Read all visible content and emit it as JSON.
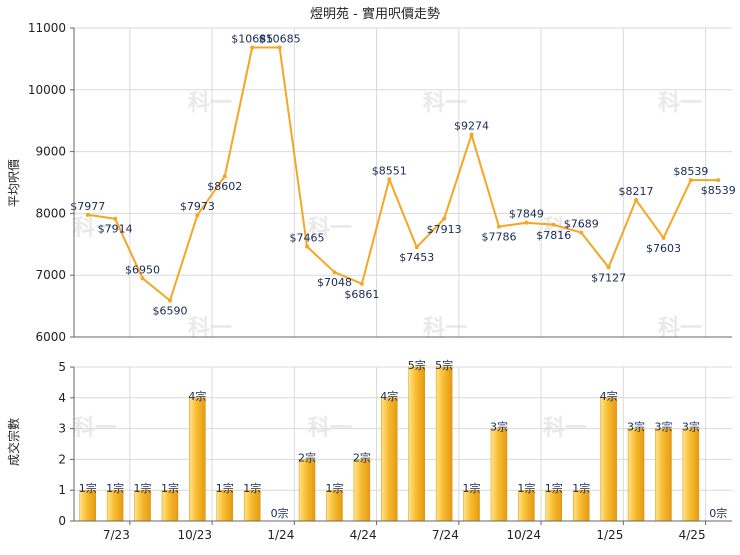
{
  "title": "煜明苑 - 實用呎價走勢",
  "watermark": "科一",
  "colors": {
    "line": "#f5a623",
    "bar_light": "#ffe48a",
    "bar_mid": "#f7bc31",
    "bar_dark": "#e59a12",
    "grid": "#d9d9d9",
    "axis": "#666666",
    "text": "#222222",
    "label": "#1a2a55",
    "watermark": "#e9e9e9"
  },
  "chart_data": [
    {
      "type": "line",
      "ylabel": "平均呎價",
      "ylim": [
        6000,
        11000
      ],
      "yticks": [
        "6000",
        "7000",
        "8000",
        "9000",
        "10000",
        "11000"
      ],
      "grid": true,
      "values": [
        7977,
        7914,
        6950,
        6590,
        7973,
        8602,
        10685,
        10685,
        7465,
        7048,
        6861,
        8551,
        7453,
        7913,
        9274,
        7786,
        7849,
        7816,
        7689,
        7127,
        8217,
        7603,
        8539,
        8539
      ],
      "labels": [
        "$7977",
        "$7914",
        "$6950",
        "$6590",
        "$7973",
        "$8602",
        "$10685",
        "$10685",
        "$7465",
        "$7048",
        "$6861",
        "$8551",
        "$7453",
        "$7913",
        "$9274",
        "$7786",
        "$7849",
        "$7816",
        "$7689",
        "$7127",
        "$8217",
        "$7603",
        "$8539",
        "$8539"
      ]
    },
    {
      "type": "bar",
      "ylabel": "成交宗數",
      "ylim": [
        0,
        5
      ],
      "yticks": [
        "0",
        "1",
        "2",
        "3",
        "4",
        "5"
      ],
      "grid": true,
      "values": [
        1,
        1,
        1,
        1,
        4,
        1,
        1,
        0,
        2,
        1,
        2,
        4,
        5,
        5,
        1,
        3,
        1,
        1,
        1,
        4,
        3,
        3,
        3,
        0
      ],
      "labels": [
        "1宗",
        "1宗",
        "1宗",
        "1宗",
        "4宗",
        "1宗",
        "1宗",
        "0宗",
        "2宗",
        "1宗",
        "2宗",
        "4宗",
        "5宗",
        "5宗",
        "1宗",
        "3宗",
        "1宗",
        "1宗",
        "1宗",
        "4宗",
        "3宗",
        "3宗",
        "3宗",
        "0宗"
      ],
      "xtick_labels": [
        "7/23",
        "10/23",
        "1/24",
        "4/24",
        "7/24",
        "10/24",
        "1/25",
        "4/25"
      ]
    }
  ]
}
